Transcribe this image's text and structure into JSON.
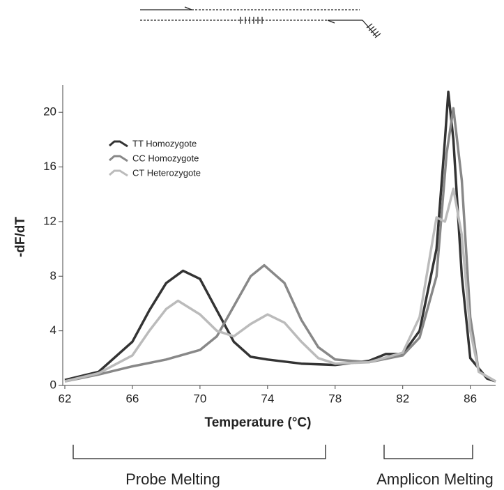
{
  "chart_data": {
    "type": "line",
    "xlabel": "Temperature (°C)",
    "ylabel": "-dF/dT",
    "xlim": [
      62,
      87.5
    ],
    "ylim": [
      0,
      22
    ],
    "xticks": [
      62,
      66,
      70,
      74,
      78,
      82,
      86
    ],
    "yticks": [
      0,
      4,
      8,
      12,
      16,
      20
    ],
    "legend": "upper left",
    "annotations": [
      "Probe Melting",
      "Amplicon Melting"
    ],
    "series": [
      {
        "name": "TT Homozygote",
        "color": "#333333",
        "x": [
          62,
          64,
          66,
          67,
          68,
          69,
          70,
          71,
          72,
          73,
          74,
          76,
          78,
          80,
          81,
          82,
          83,
          84,
          84.5,
          84.7,
          85,
          85.5,
          86,
          87,
          87.5
        ],
        "values": [
          0.4,
          1.0,
          3.2,
          5.5,
          7.5,
          8.4,
          7.8,
          5.5,
          3.2,
          2.1,
          1.9,
          1.6,
          1.5,
          1.8,
          2.3,
          2.3,
          4,
          10,
          18,
          21.5,
          18,
          8,
          2,
          0.5,
          0.3
        ]
      },
      {
        "name": "CC Homozygote",
        "color": "#888888",
        "x": [
          62,
          64,
          66,
          68,
          70,
          71,
          72,
          73,
          73.8,
          75,
          76,
          77,
          78,
          80,
          82,
          83,
          84,
          84.6,
          85,
          85.5,
          86,
          86.5,
          87.5
        ],
        "values": [
          0.3,
          0.8,
          1.4,
          1.9,
          2.6,
          3.6,
          5.8,
          8.0,
          8.8,
          7.5,
          4.8,
          2.8,
          1.9,
          1.7,
          2.2,
          3.5,
          8,
          17,
          20.3,
          15,
          5,
          1,
          0.3
        ]
      },
      {
        "name": "CT Heterozygote",
        "color": "#bbbbbb",
        "x": [
          62,
          64,
          66,
          67,
          68,
          68.7,
          70,
          71,
          72,
          73,
          74,
          75,
          76,
          77,
          78,
          80,
          82,
          83,
          84,
          84.5,
          85,
          85.5,
          86,
          86.5,
          87.5
        ],
        "values": [
          0.3,
          0.9,
          2.2,
          4,
          5.6,
          6.2,
          5.2,
          4,
          3.6,
          4.5,
          5.2,
          4.6,
          3.2,
          2.0,
          1.6,
          1.7,
          2.4,
          5,
          12.3,
          12,
          14.4,
          11,
          4,
          1,
          0.3
        ]
      }
    ]
  }
}
